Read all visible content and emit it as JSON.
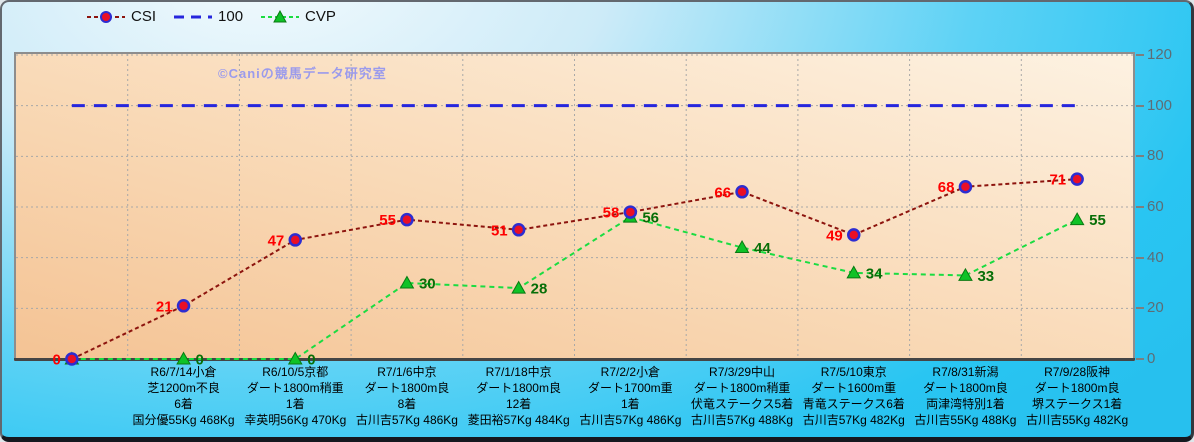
{
  "legend": {
    "items": [
      {
        "label": "CSI",
        "line_color": "#8d140e",
        "marker": "circle",
        "marker_fill": "#ea0f26",
        "marker_edge": "#2d2dd1"
      },
      {
        "label": "100",
        "line_color": "#2626dd",
        "marker": "none"
      },
      {
        "label": "CVP",
        "line_color": "#1bdc41",
        "marker": "triangle",
        "marker_fill": "#0fc227",
        "marker_edge": "#0a7a12"
      }
    ]
  },
  "watermark": {
    "text": "©Caniの競馬データ研究室",
    "color": "#9b9bec"
  },
  "colors": {
    "grid": "#a8a8a8",
    "axis": "#454545",
    "plot_border": "#8d8d8d",
    "ytick_text": "#5d6d76",
    "csi_label": "#fe0000",
    "cvp_label": "#076e07"
  },
  "chart_data": {
    "type": "line",
    "title": "",
    "xlabel": "",
    "ylabel": "",
    "ylim": [
      0,
      120
    ],
    "yticks": [
      0,
      20,
      40,
      60,
      80,
      100,
      120
    ],
    "grid": true,
    "legend_position": "top",
    "categories_lines": [
      [],
      [
        "R6/7/14小倉",
        "芝1200m不良",
        "6着",
        "国分優55Kg 468Kg"
      ],
      [
        "R6/10/5京都",
        "ダート1800m稍重",
        "1着",
        "幸英明56Kg 470Kg"
      ],
      [
        "R7/1/6中京",
        "ダート1800m良",
        "8着",
        "古川吉57Kg 486Kg"
      ],
      [
        "R7/1/18中京",
        "ダート1800m良",
        "12着",
        "菱田裕57Kg 484Kg"
      ],
      [
        "R7/2/2小倉",
        "ダート1700m重",
        "1着",
        "古川吉57Kg 486Kg"
      ],
      [
        "R7/3/29中山",
        "ダート1800m稍重",
        "伏竜ステークス5着",
        "古川吉57Kg 488Kg"
      ],
      [
        "R7/5/10東京",
        "ダート1600m重",
        "青竜ステークス6着",
        "古川吉57Kg 482Kg"
      ],
      [
        "R7/8/31新潟",
        "ダート1800m良",
        "両津湾特別1着",
        "古川吉55Kg 488Kg"
      ],
      [
        "R7/9/28阪神",
        "ダート1800m良",
        "堺ステークス1着",
        "古川吉55Kg 482Kg"
      ]
    ],
    "series": [
      {
        "name": "CSI",
        "kind": "line",
        "values": [
          0,
          21,
          47,
          55,
          51,
          58,
          66,
          49,
          68,
          71
        ],
        "show_labels": [
          true,
          true,
          true,
          true,
          true,
          true,
          true,
          true,
          true,
          true
        ],
        "label_side": "left",
        "line_color": "#8d140e",
        "dash": "4 3",
        "line_width": 2,
        "marker": "circle",
        "marker_fill": "#ea0f26",
        "marker_edge": "#2d2dd1",
        "label_color": "#fe0000"
      },
      {
        "name": "100",
        "kind": "constant",
        "value": 100,
        "line_color": "#2626dd",
        "dash": "13 9",
        "line_width": 3
      },
      {
        "name": "CVP",
        "kind": "line",
        "values": [
          0,
          0,
          0,
          30,
          28,
          56,
          44,
          34,
          33,
          55
        ],
        "show_labels": [
          false,
          true,
          true,
          true,
          true,
          true,
          true,
          true,
          true,
          true
        ],
        "label_side": "right",
        "line_color": "#1bdc41",
        "dash": "5 4",
        "line_width": 2,
        "marker": "triangle",
        "marker_fill": "#0fc227",
        "marker_edge": "#0a7a12",
        "label_color": "#076e07"
      }
    ]
  }
}
